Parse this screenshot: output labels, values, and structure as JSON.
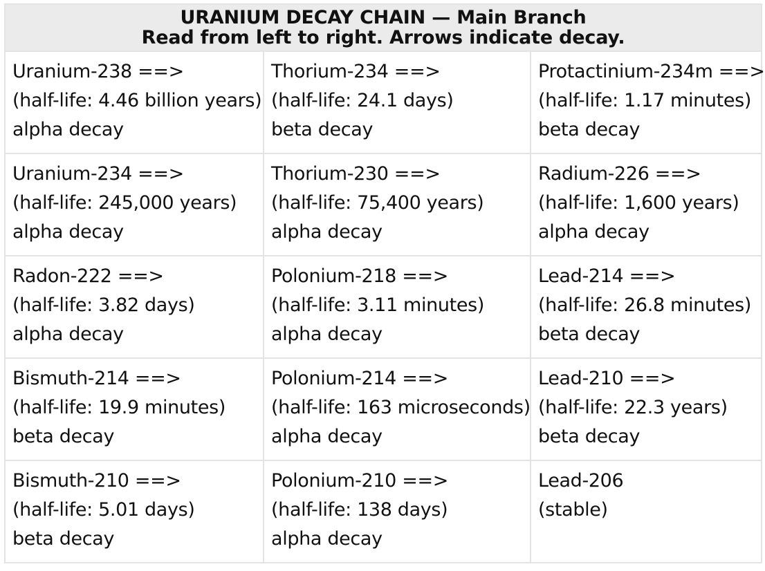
{
  "header": {
    "title": "URANIUM DECAY CHAIN — Main Branch",
    "subtitle": "Read from left to right. Arrows indicate decay."
  },
  "rows": [
    [
      {
        "name": "Uranium-238 ==>",
        "half_life": "(half-life: 4.46 billion years)",
        "decay": "alpha decay"
      },
      {
        "name": "Thorium-234 ==>",
        "half_life": "(half-life: 24.1 days)",
        "decay": "beta decay"
      },
      {
        "name": "Protactinium-234m ==>",
        "half_life": "(half-life: 1.17 minutes)",
        "decay": "beta decay"
      }
    ],
    [
      {
        "name": "Uranium-234 ==>",
        "half_life": "(half-life: 245,000 years)",
        "decay": "alpha decay"
      },
      {
        "name": "Thorium-230 ==>",
        "half_life": "(half-life: 75,400 years)",
        "decay": "alpha decay"
      },
      {
        "name": "Radium-226 ==>",
        "half_life": "(half-life: 1,600 years)",
        "decay": "alpha decay"
      }
    ],
    [
      {
        "name": "Radon-222 ==>",
        "half_life": "(half-life: 3.82 days)",
        "decay": "alpha decay"
      },
      {
        "name": "Polonium-218 ==>",
        "half_life": "(half-life: 3.11 minutes)",
        "decay": "alpha decay"
      },
      {
        "name": "Lead-214 ==>",
        "half_life": "(half-life: 26.8 minutes)",
        "decay": "beta decay"
      }
    ],
    [
      {
        "name": "Bismuth-214 ==>",
        "half_life": "(half-life: 19.9 minutes)",
        "decay": "beta decay"
      },
      {
        "name": "Polonium-214 ==>",
        "half_life": "(half-life: 163 microseconds)",
        "decay": "alpha decay"
      },
      {
        "name": "Lead-210 ==>",
        "half_life": "(half-life: 22.3 years)",
        "decay": "beta decay"
      }
    ],
    [
      {
        "name": "Bismuth-210 ==>",
        "half_life": "(half-life: 5.01 days)",
        "decay": "beta decay"
      },
      {
        "name": "Polonium-210 ==>",
        "half_life": "(half-life: 138 days)",
        "decay": "alpha decay"
      },
      {
        "name": "Lead-206",
        "half_life": "(stable)"
      }
    ]
  ]
}
